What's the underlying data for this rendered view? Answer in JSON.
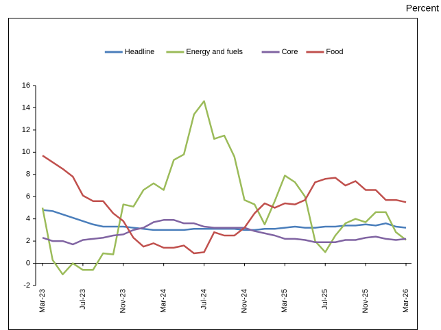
{
  "chart_data": {
    "type": "line",
    "unit_label": "Percent",
    "categories": [
      "Mar-23",
      null,
      null,
      null,
      "Jul-23",
      null,
      null,
      null,
      "Nov-23",
      null,
      null,
      null,
      "Mar-24",
      null,
      null,
      null,
      "Jul-24",
      null,
      null,
      null,
      "Nov-24",
      null,
      null,
      null,
      "Mar-25",
      null,
      null,
      null,
      "Jul-25",
      null,
      null,
      null,
      "Nov-25",
      null,
      null,
      null,
      "Mar-26"
    ],
    "series": [
      {
        "name": "Headline",
        "color": "#4a7ebb",
        "values": [
          4.8,
          4.7,
          4.4,
          4.1,
          3.8,
          3.5,
          3.3,
          3.3,
          3.3,
          3.2,
          3.1,
          3.0,
          3.0,
          3.0,
          3.0,
          3.1,
          3.1,
          3.1,
          3.1,
          3.1,
          3.0,
          3.0,
          3.1,
          3.1,
          3.2,
          3.3,
          3.2,
          3.2,
          3.3,
          3.3,
          3.4,
          3.4,
          3.5,
          3.4,
          3.6,
          3.3,
          3.2
        ]
      },
      {
        "name": "Energy and fuels",
        "color": "#9bbb59",
        "values": [
          5.0,
          0.3,
          -1.0,
          0.0,
          -0.6,
          -0.6,
          0.9,
          0.8,
          5.3,
          5.1,
          6.6,
          7.2,
          6.6,
          9.3,
          9.8,
          13.4,
          14.6,
          11.2,
          11.5,
          9.6,
          5.7,
          5.3,
          3.5,
          5.6,
          7.9,
          7.3,
          6.0,
          2.0,
          1.0,
          2.5,
          3.6,
          4.0,
          3.7,
          4.6,
          4.6,
          2.8,
          2.1
        ]
      },
      {
        "name": "Core",
        "color": "#8064a2",
        "values": [
          2.3,
          2.0,
          2.0,
          1.7,
          2.1,
          2.2,
          2.3,
          2.5,
          2.6,
          3.0,
          3.2,
          3.7,
          3.9,
          3.9,
          3.6,
          3.6,
          3.3,
          3.2,
          3.2,
          3.2,
          3.2,
          2.9,
          2.7,
          2.5,
          2.2,
          2.2,
          2.1,
          1.9,
          1.9,
          1.9,
          2.1,
          2.1,
          2.3,
          2.4,
          2.2,
          2.1,
          2.2
        ]
      },
      {
        "name": "Food",
        "color": "#c0504d",
        "values": [
          9.7,
          9.1,
          8.5,
          7.8,
          6.1,
          5.6,
          5.6,
          4.5,
          3.8,
          2.3,
          1.5,
          1.8,
          1.4,
          1.4,
          1.6,
          0.9,
          1.0,
          2.8,
          2.5,
          2.5,
          3.2,
          4.5,
          5.4,
          5.0,
          5.4,
          5.3,
          5.7,
          7.3,
          7.6,
          7.7,
          7.0,
          7.4,
          6.6,
          6.6,
          5.7,
          5.7,
          5.5
        ]
      }
    ],
    "ylim": [
      -2,
      16
    ],
    "yticks": [
      -2,
      0,
      2,
      4,
      6,
      8,
      10,
      12,
      14,
      16
    ],
    "grid": false,
    "legend": "top"
  }
}
